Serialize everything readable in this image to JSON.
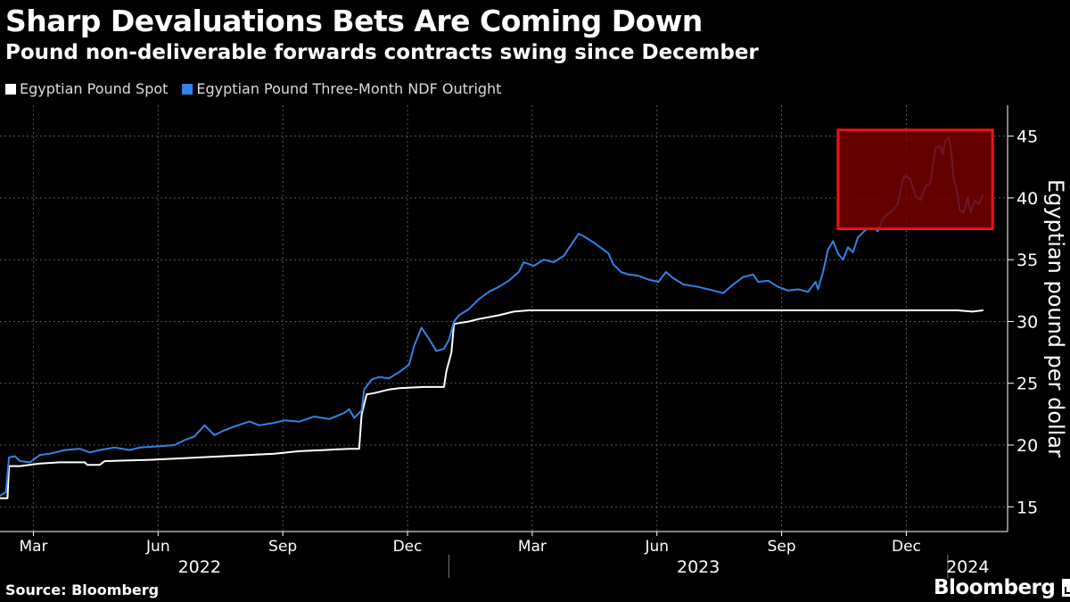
{
  "header": {
    "title": "Sharp Devaluations Bets Are Coming Down",
    "subtitle": "Pound non-deliverable forwards contracts swing since December"
  },
  "footer": {
    "source": "Source: Bloomberg",
    "logo_text": "Bloomberg"
  },
  "colors": {
    "spot": "#ffffff",
    "ndf": "#2f84e6",
    "highlight_fill": "#7a0000",
    "highlight_border": "#e8121b",
    "grid": "#555555"
  },
  "chart_data": {
    "type": "line",
    "title": "Sharp Devaluations Bets Are Coming Down",
    "subtitle": "Pound non-deliverable forwards contracts swing since December",
    "xlabel": "",
    "ylabel": "Egyptian pound per dollar",
    "ylim": [
      13,
      47.5
    ],
    "yticks": [
      15,
      20,
      25,
      30,
      35,
      40,
      45
    ],
    "xlim": [
      2022.1,
      2024.12
    ],
    "month_ticks": [
      {
        "label": "Mar",
        "x": 2022.167
      },
      {
        "label": "Jun",
        "x": 2022.417
      },
      {
        "label": "Sep",
        "x": 2022.667
      },
      {
        "label": "Dec",
        "x": 2022.917
      },
      {
        "label": "Mar",
        "x": 2023.167
      },
      {
        "label": "Jun",
        "x": 2023.417
      },
      {
        "label": "Sep",
        "x": 2023.667
      },
      {
        "label": "Dec",
        "x": 2023.917
      }
    ],
    "year_labels": [
      {
        "label": "2022",
        "x": 2022.5
      },
      {
        "label": "2023",
        "x": 2023.5
      },
      {
        "label": "2024",
        "x": 2024.04
      }
    ],
    "year_dividers": [
      2023.0,
      2024.0
    ],
    "grid": true,
    "legend_position": "top-left",
    "highlight": {
      "x0": 2023.78,
      "x1": 2024.09,
      "y0": 37.5,
      "y1": 45.5
    },
    "series": [
      {
        "name": "Egyptian Pound Spot",
        "color": "#ffffff",
        "points": [
          [
            2022.1,
            15.7
          ],
          [
            2022.115,
            15.7
          ],
          [
            2022.118,
            18.3
          ],
          [
            2022.14,
            18.3
          ],
          [
            2022.18,
            18.5
          ],
          [
            2022.22,
            18.6
          ],
          [
            2022.27,
            18.6
          ],
          [
            2022.275,
            18.4
          ],
          [
            2022.3,
            18.4
          ],
          [
            2022.31,
            18.7
          ],
          [
            2022.4,
            18.8
          ],
          [
            2022.45,
            18.9
          ],
          [
            2022.5,
            19.0
          ],
          [
            2022.55,
            19.1
          ],
          [
            2022.6,
            19.2
          ],
          [
            2022.65,
            19.3
          ],
          [
            2022.7,
            19.5
          ],
          [
            2022.75,
            19.6
          ],
          [
            2022.8,
            19.7
          ],
          [
            2022.82,
            19.7
          ],
          [
            2022.825,
            22.5
          ],
          [
            2022.835,
            24.1
          ],
          [
            2022.85,
            24.2
          ],
          [
            2022.88,
            24.5
          ],
          [
            2022.9,
            24.6
          ],
          [
            2022.95,
            24.7
          ],
          [
            2022.99,
            24.7
          ],
          [
            2022.995,
            26.0
          ],
          [
            2023.005,
            27.5
          ],
          [
            2023.01,
            29.8
          ],
          [
            2023.04,
            30.0
          ],
          [
            2023.06,
            30.2
          ],
          [
            2023.1,
            30.5
          ],
          [
            2023.13,
            30.8
          ],
          [
            2023.16,
            30.9
          ],
          [
            2023.25,
            30.9
          ],
          [
            2023.35,
            30.9
          ],
          [
            2023.45,
            30.9
          ],
          [
            2023.55,
            30.9
          ],
          [
            2023.65,
            30.9
          ],
          [
            2023.75,
            30.9
          ],
          [
            2023.85,
            30.9
          ],
          [
            2023.95,
            30.9
          ],
          [
            2024.02,
            30.9
          ],
          [
            2024.05,
            30.8
          ],
          [
            2024.07,
            30.9
          ]
        ]
      },
      {
        "name": "Egyptian Pound Three-Month NDF Outright",
        "color": "#2f84e6",
        "points": [
          [
            2022.1,
            15.9
          ],
          [
            2022.112,
            16.2
          ],
          [
            2022.118,
            19.0
          ],
          [
            2022.13,
            19.1
          ],
          [
            2022.14,
            18.7
          ],
          [
            2022.16,
            18.6
          ],
          [
            2022.18,
            19.2
          ],
          [
            2022.2,
            19.3
          ],
          [
            2022.23,
            19.6
          ],
          [
            2022.26,
            19.7
          ],
          [
            2022.28,
            19.4
          ],
          [
            2022.3,
            19.6
          ],
          [
            2022.33,
            19.8
          ],
          [
            2022.36,
            19.6
          ],
          [
            2022.38,
            19.8
          ],
          [
            2022.42,
            19.9
          ],
          [
            2022.45,
            20.0
          ],
          [
            2022.47,
            20.4
          ],
          [
            2022.49,
            20.7
          ],
          [
            2022.51,
            21.6
          ],
          [
            2022.53,
            20.8
          ],
          [
            2022.55,
            21.2
          ],
          [
            2022.57,
            21.5
          ],
          [
            2022.6,
            21.9
          ],
          [
            2022.62,
            21.6
          ],
          [
            2022.65,
            21.8
          ],
          [
            2022.67,
            22.0
          ],
          [
            2022.7,
            21.9
          ],
          [
            2022.73,
            22.3
          ],
          [
            2022.76,
            22.1
          ],
          [
            2022.79,
            22.6
          ],
          [
            2022.8,
            22.9
          ],
          [
            2022.81,
            22.2
          ],
          [
            2022.825,
            22.8
          ],
          [
            2022.83,
            24.5
          ],
          [
            2022.845,
            25.3
          ],
          [
            2022.86,
            25.5
          ],
          [
            2022.88,
            25.4
          ],
          [
            2022.9,
            25.9
          ],
          [
            2022.92,
            26.5
          ],
          [
            2022.93,
            28.0
          ],
          [
            2022.945,
            29.5
          ],
          [
            2022.96,
            28.6
          ],
          [
            2022.975,
            27.6
          ],
          [
            2022.99,
            27.8
          ],
          [
            2023.0,
            28.5
          ],
          [
            2023.01,
            30.0
          ],
          [
            2023.02,
            30.5
          ],
          [
            2023.04,
            31.0
          ],
          [
            2023.06,
            31.8
          ],
          [
            2023.08,
            32.4
          ],
          [
            2023.1,
            32.8
          ],
          [
            2023.12,
            33.3
          ],
          [
            2023.14,
            34.0
          ],
          [
            2023.15,
            34.8
          ],
          [
            2023.17,
            34.5
          ],
          [
            2023.19,
            35.0
          ],
          [
            2023.21,
            34.8
          ],
          [
            2023.23,
            35.3
          ],
          [
            2023.245,
            36.2
          ],
          [
            2023.26,
            37.1
          ],
          [
            2023.27,
            36.9
          ],
          [
            2023.29,
            36.4
          ],
          [
            2023.31,
            35.8
          ],
          [
            2023.32,
            35.5
          ],
          [
            2023.33,
            34.6
          ],
          [
            2023.345,
            34.0
          ],
          [
            2023.36,
            33.8
          ],
          [
            2023.38,
            33.7
          ],
          [
            2023.4,
            33.4
          ],
          [
            2023.42,
            33.2
          ],
          [
            2023.435,
            34.0
          ],
          [
            2023.45,
            33.5
          ],
          [
            2023.47,
            33.0
          ],
          [
            2023.5,
            32.8
          ],
          [
            2023.53,
            32.5
          ],
          [
            2023.55,
            32.3
          ],
          [
            2023.57,
            33.0
          ],
          [
            2023.59,
            33.6
          ],
          [
            2023.61,
            33.8
          ],
          [
            2023.62,
            33.2
          ],
          [
            2023.64,
            33.3
          ],
          [
            2023.66,
            32.8
          ],
          [
            2023.68,
            32.5
          ],
          [
            2023.7,
            32.6
          ],
          [
            2023.72,
            32.4
          ],
          [
            2023.735,
            33.2
          ],
          [
            2023.74,
            32.6
          ],
          [
            2023.75,
            34.0
          ],
          [
            2023.76,
            35.8
          ],
          [
            2023.77,
            36.5
          ],
          [
            2023.78,
            35.5
          ],
          [
            2023.79,
            35.0
          ],
          [
            2023.8,
            36.0
          ],
          [
            2023.81,
            35.6
          ],
          [
            2023.82,
            36.8
          ],
          [
            2023.835,
            37.4
          ],
          [
            2023.85,
            37.6
          ],
          [
            2023.86,
            37.3
          ],
          [
            2023.87,
            38.3
          ],
          [
            2023.88,
            38.7
          ],
          [
            2023.89,
            39.0
          ],
          [
            2023.9,
            39.5
          ],
          [
            2023.91,
            41.5
          ],
          [
            2023.915,
            41.8
          ],
          [
            2023.925,
            41.5
          ],
          [
            2023.935,
            40.2
          ],
          [
            2023.945,
            39.8
          ],
          [
            2023.955,
            40.9
          ],
          [
            2023.965,
            41.2
          ],
          [
            2023.975,
            44.0
          ],
          [
            2023.985,
            44.2
          ],
          [
            2023.99,
            43.5
          ],
          [
            2023.995,
            44.6
          ],
          [
            2024.002,
            44.9
          ],
          [
            2024.007,
            43.8
          ],
          [
            2024.012,
            41.5
          ],
          [
            2024.018,
            40.7
          ],
          [
            2024.024,
            39.0
          ],
          [
            2024.032,
            38.8
          ],
          [
            2024.04,
            40.0
          ],
          [
            2024.046,
            38.8
          ],
          [
            2024.054,
            39.8
          ],
          [
            2024.062,
            39.5
          ],
          [
            2024.07,
            40.2
          ]
        ]
      }
    ]
  }
}
